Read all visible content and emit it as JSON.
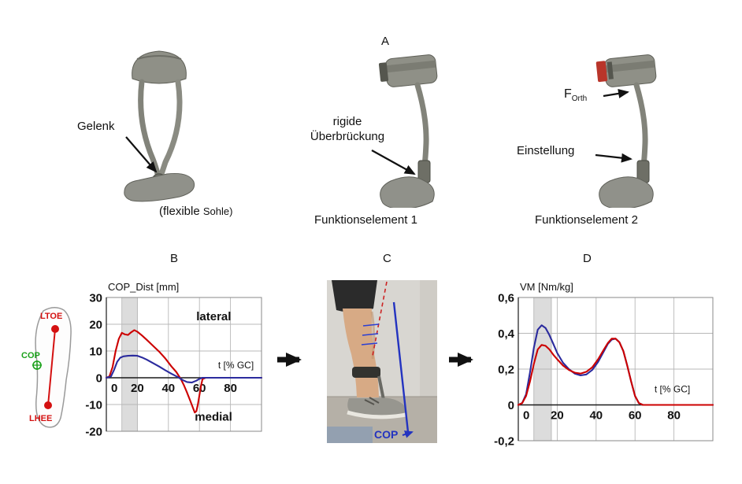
{
  "figure": {
    "panel_labels": {
      "a": "A",
      "b": "B",
      "c": "C",
      "d": "D"
    }
  },
  "top_row": {
    "left_orthosis": {
      "annotation": "Gelenk",
      "caption_part1": "(flexible ",
      "caption_part2": "Sohle)"
    },
    "middle_orthosis": {
      "annotation_line1": "rigide",
      "annotation_line2": "Überbrückung",
      "caption": "Funktionselement 1"
    },
    "right_orthosis": {
      "force_symbol": "F",
      "force_subscript": "Orth",
      "annotation": "Einstellung",
      "caption": "Funktionselement 2"
    }
  },
  "foot_diagram": {
    "toe_marker_label": "LTOE",
    "cop_marker_label": "COP",
    "heel_marker_label": "LHEE"
  },
  "photo_panel": {
    "cop_label": "COP"
  },
  "colors": {
    "red_series": "#cc0000",
    "blue_series": "#2b2b9e",
    "marker_red": "#d41111",
    "marker_green": "#1aa11a",
    "cop_blue": "#2333c0"
  },
  "chart_data": [
    {
      "id": "cop_dist",
      "type": "line",
      "title": "COP_Dist [mm]",
      "xlabel": "t [% GC]",
      "xlabel_pos": {
        "x": 72,
        "y": 3.5
      },
      "xlim": [
        0,
        100
      ],
      "ylim": [
        -20,
        30
      ],
      "xticks": [
        0,
        20,
        40,
        60,
        80
      ],
      "ytick_values": [
        30,
        20,
        10,
        0,
        -10,
        -20
      ],
      "ytick_labels": [
        "30",
        "20",
        "10",
        "0",
        "-10",
        "-20"
      ],
      "grid": true,
      "highlight_band_x": [
        10,
        20
      ],
      "annotations": [
        {
          "text": "lateral",
          "x": 58,
          "y": 21.5
        },
        {
          "text": "medial",
          "x": 57,
          "y": -16
        }
      ],
      "series": [
        {
          "name": "red-curve",
          "color": "#cc0000",
          "x": [
            0,
            2,
            4,
            6,
            8,
            10,
            12,
            14,
            16,
            18,
            20,
            23,
            26,
            30,
            34,
            38,
            42,
            45,
            48,
            50,
            52,
            54,
            56,
            57,
            58,
            59,
            60,
            61,
            62,
            64,
            70,
            80,
            90,
            100
          ],
          "y": [
            0,
            0.5,
            4,
            10,
            14.5,
            16.8,
            16.2,
            16,
            17,
            17.8,
            17.2,
            15.8,
            14.2,
            12,
            9.8,
            7.2,
            4.2,
            2.2,
            -0.5,
            -2.8,
            -5.5,
            -8.5,
            -11.5,
            -13,
            -12.5,
            -10,
            -6.5,
            -3,
            -0.5,
            0,
            0,
            0,
            0,
            0
          ]
        },
        {
          "name": "blue-curve",
          "color": "#2b2b9e",
          "x": [
            0,
            3,
            5,
            7,
            9,
            11,
            14,
            17,
            20,
            23,
            26,
            30,
            34,
            38,
            42,
            46,
            49,
            52,
            55,
            58,
            60,
            62,
            70,
            80,
            90,
            100
          ],
          "y": [
            0,
            0.5,
            3,
            6,
            7.5,
            8,
            8.2,
            8.3,
            8.2,
            7.6,
            6.8,
            5.5,
            4.2,
            2.8,
            1.5,
            0.3,
            -0.8,
            -1.6,
            -1.8,
            -1.1,
            -0.4,
            0,
            0,
            0,
            0,
            0
          ]
        }
      ]
    },
    {
      "id": "vm",
      "type": "line",
      "title": "VM [Nm/kg]",
      "xlabel": "t [% GC]",
      "xlabel_pos": {
        "x": 70,
        "y": 0.07
      },
      "xlim": [
        0,
        100
      ],
      "ylim": [
        -0.2,
        0.6
      ],
      "xticks": [
        0,
        20,
        40,
        60,
        80
      ],
      "ytick_values": [
        0.6,
        0.4,
        0.2,
        0,
        -0.2
      ],
      "ytick_labels": [
        "0,6",
        "0,4",
        "0,2",
        "0",
        "-0,2"
      ],
      "grid": true,
      "highlight_band_x": [
        8,
        17
      ],
      "annotations": [],
      "series": [
        {
          "name": "blue-curve",
          "color": "#2b2b9e",
          "x": [
            0,
            2,
            4,
            6,
            8,
            10,
            12,
            14,
            16,
            18,
            20,
            23,
            26,
            29,
            32,
            35,
            38,
            41,
            44,
            46,
            48,
            50,
            52,
            54,
            56,
            58,
            60,
            62,
            64,
            70,
            80,
            90,
            100
          ],
          "y": [
            0,
            0.01,
            0.06,
            0.18,
            0.32,
            0.42,
            0.445,
            0.43,
            0.39,
            0.34,
            0.29,
            0.235,
            0.2,
            0.175,
            0.165,
            0.17,
            0.195,
            0.24,
            0.3,
            0.34,
            0.365,
            0.37,
            0.35,
            0.3,
            0.22,
            0.13,
            0.05,
            0.01,
            0,
            0,
            0,
            0,
            0
          ]
        },
        {
          "name": "red-curve",
          "color": "#cc0000",
          "x": [
            0,
            2,
            4,
            6,
            8,
            10,
            12,
            14,
            16,
            18,
            20,
            23,
            26,
            29,
            32,
            35,
            38,
            41,
            44,
            46,
            48,
            50,
            52,
            54,
            56,
            58,
            60,
            62,
            64,
            70,
            80,
            90,
            100
          ],
          "y": [
            0,
            0.01,
            0.05,
            0.13,
            0.23,
            0.31,
            0.335,
            0.33,
            0.31,
            0.28,
            0.255,
            0.22,
            0.195,
            0.18,
            0.175,
            0.185,
            0.21,
            0.255,
            0.31,
            0.345,
            0.37,
            0.37,
            0.35,
            0.3,
            0.22,
            0.13,
            0.05,
            0.01,
            0,
            0,
            0,
            0,
            0
          ]
        }
      ]
    }
  ]
}
